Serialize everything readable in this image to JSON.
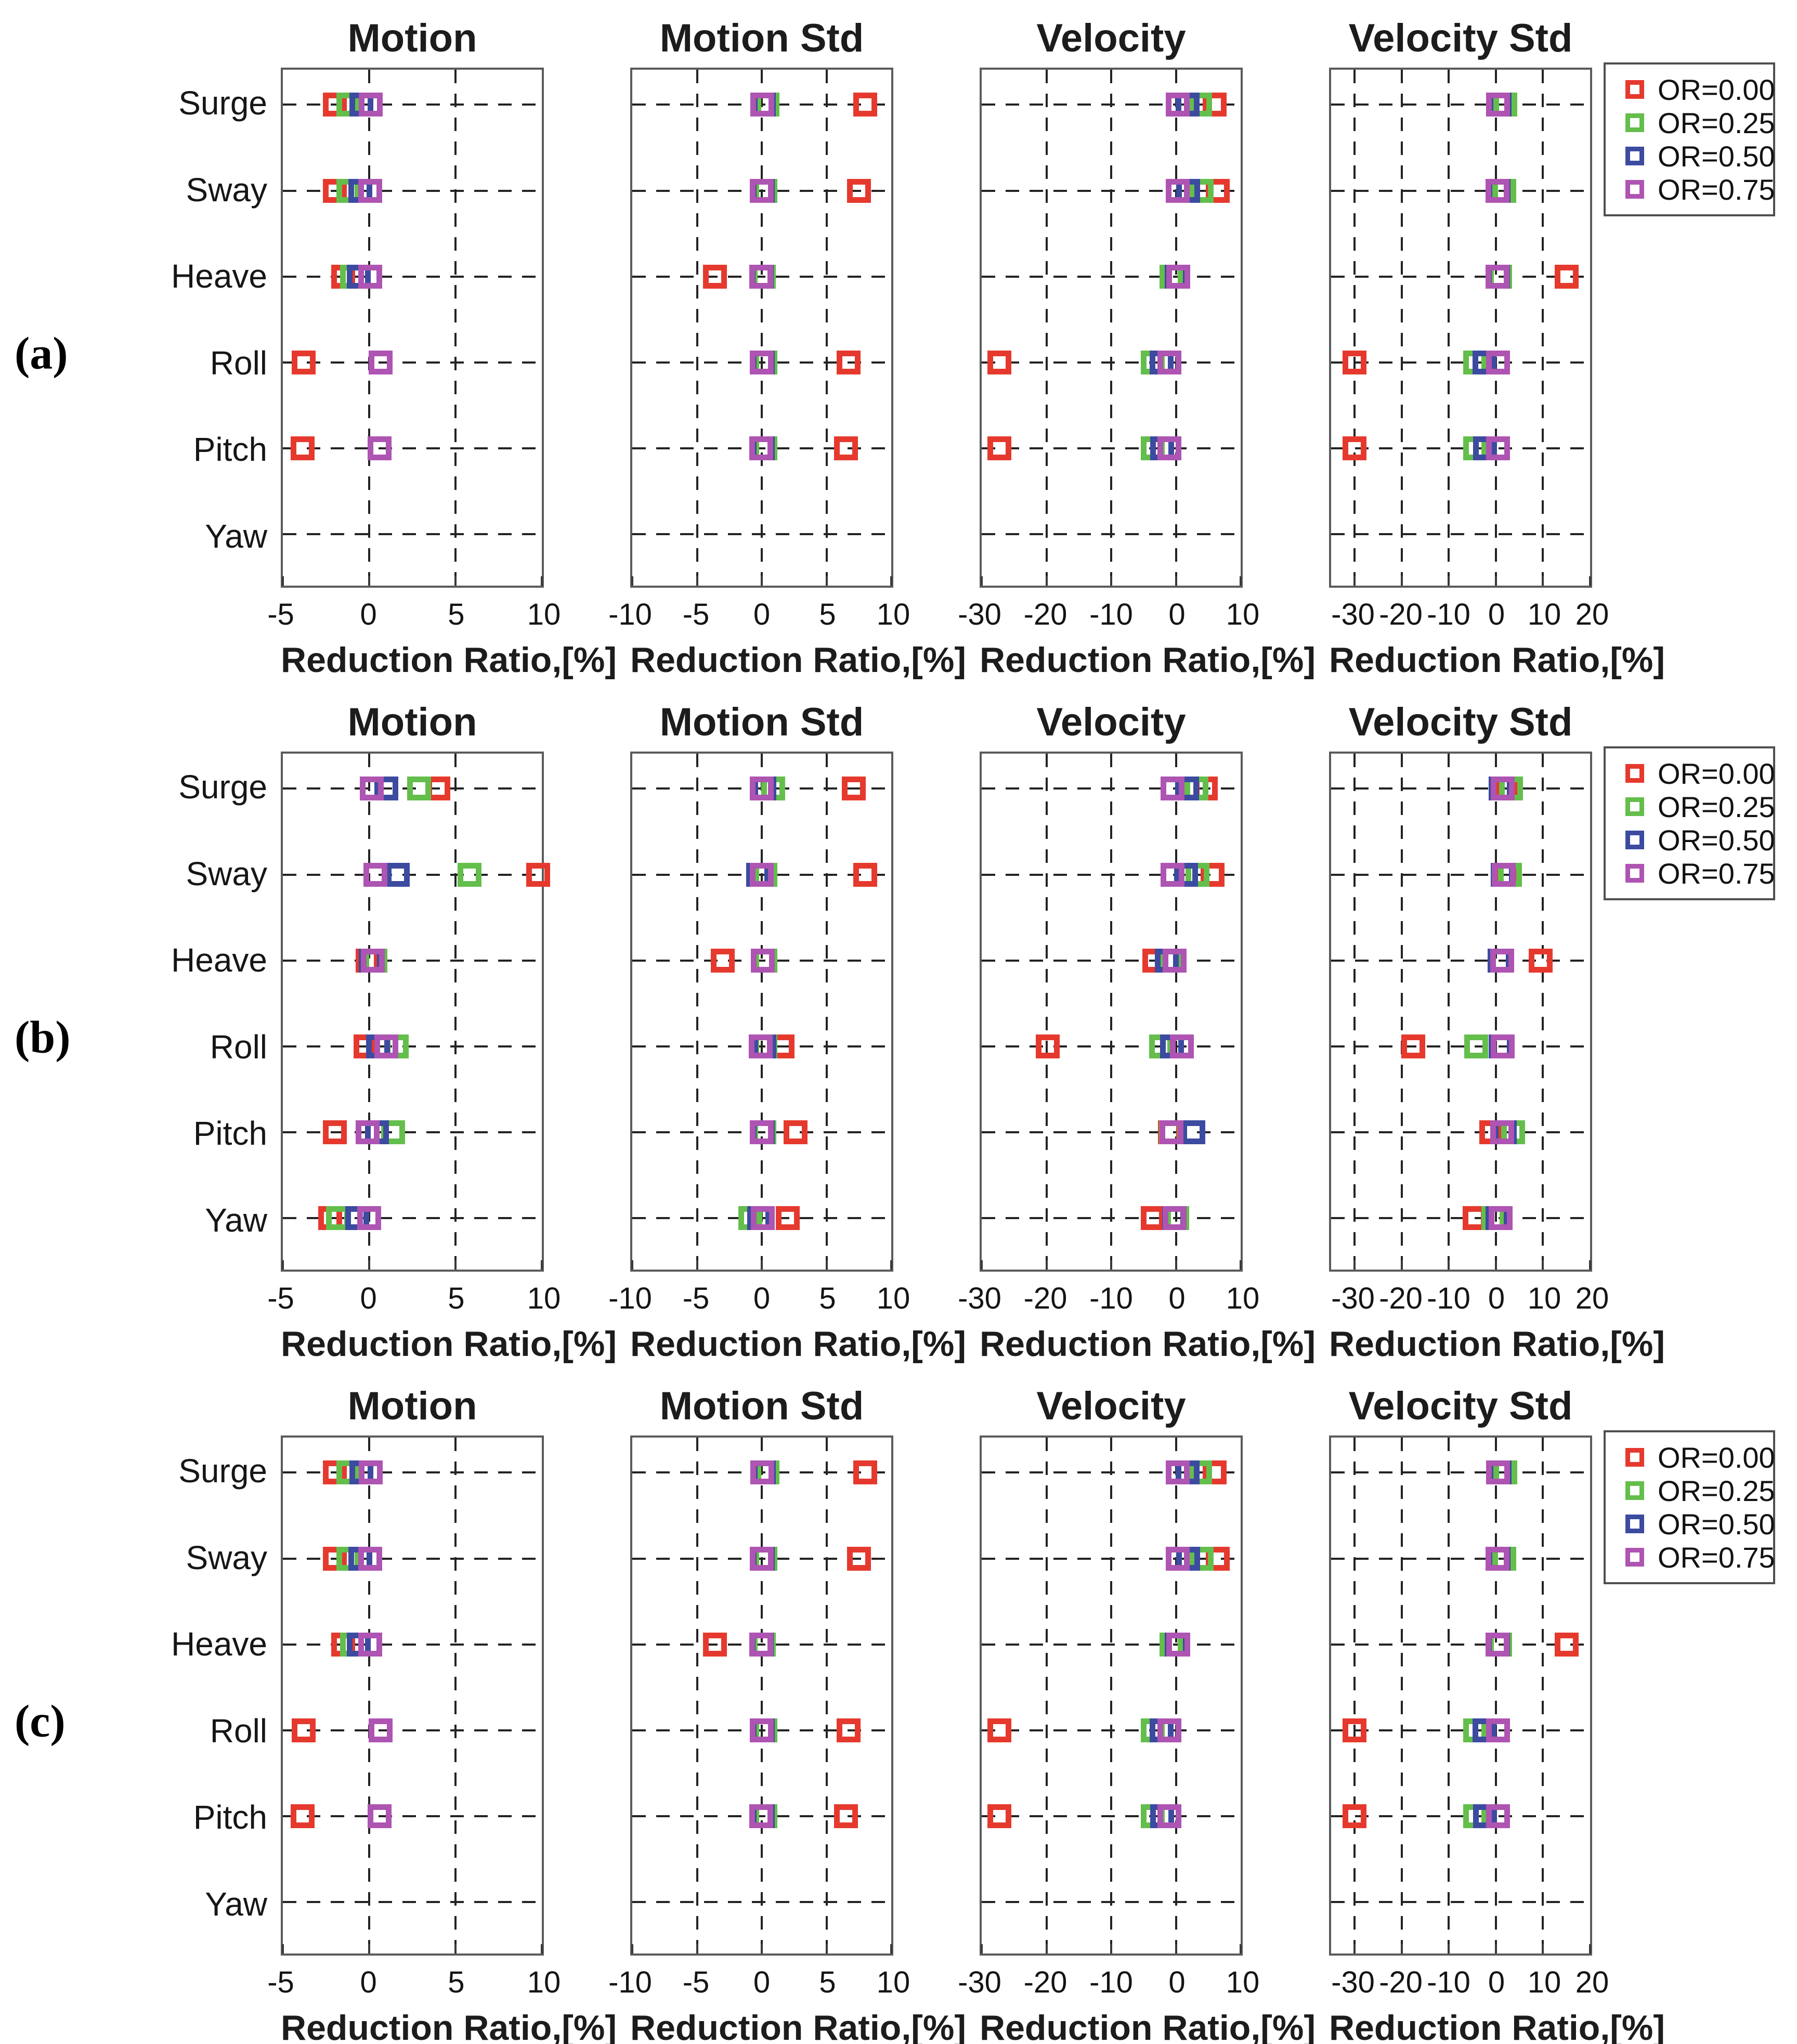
{
  "figure": {
    "background": "#ffffff",
    "x_axis_label": "Reduction Ratio,[%]",
    "categories": [
      "Surge",
      "Sway",
      "Heave",
      "Roll",
      "Pitch",
      "Yaw"
    ],
    "row_labels": [
      "(a)",
      "(b)",
      "(c)"
    ],
    "legend": {
      "items": [
        {
          "label": "OR=0.00",
          "color": "#E6392E"
        },
        {
          "label": "OR=0.25",
          "color": "#64BE4B"
        },
        {
          "label": "OR=0.50",
          "color": "#3C4BA0"
        },
        {
          "label": "OR=0.75",
          "color": "#AE54B2"
        }
      ]
    }
  },
  "chart_data": [
    {
      "row_label": "(a)",
      "type": "scatter",
      "panels": [
        {
          "title": "Motion",
          "xlabel": "Reduction Ratio,[%]",
          "xlim": [
            -5,
            10
          ],
          "xticks": [
            -5,
            0,
            5,
            10
          ],
          "grid_x": [
            0,
            5
          ],
          "series": [
            {
              "name": "OR=0.00",
              "color": "#E6392E",
              "values": [
                -2.0,
                -2.0,
                -1.5,
                -3.8,
                -3.85,
                null
              ]
            },
            {
              "name": "OR=0.25",
              "color": "#64BE4B",
              "values": [
                -1.2,
                -1.2,
                -1.0,
                0.65,
                0.6,
                null
              ]
            },
            {
              "name": "OR=0.50",
              "color": "#3C4BA0",
              "values": [
                -0.45,
                -0.5,
                -0.6,
                0.65,
                0.6,
                null
              ]
            },
            {
              "name": "OR=0.75",
              "color": "#AE54B2",
              "values": [
                0.1,
                0.05,
                0.05,
                0.65,
                0.6,
                null
              ]
            }
          ]
        },
        {
          "title": "Motion Std",
          "xlabel": "Reduction Ratio,[%]",
          "xlim": [
            -10,
            10
          ],
          "xticks": [
            -10,
            -5,
            0,
            5,
            10
          ],
          "grid_x": [
            -5,
            0,
            5
          ],
          "series": [
            {
              "name": "OR=0.00",
              "color": "#E6392E",
              "values": [
                8.0,
                7.5,
                -3.6,
                6.7,
                6.5,
                null
              ]
            },
            {
              "name": "OR=0.25",
              "color": "#64BE4B",
              "values": [
                0.45,
                0.3,
                0.15,
                0.3,
                0.3,
                null
              ]
            },
            {
              "name": "OR=0.50",
              "color": "#3C4BA0",
              "values": [
                0.15,
                0.1,
                0.0,
                0.1,
                0.1,
                null
              ]
            },
            {
              "name": "OR=0.75",
              "color": "#AE54B2",
              "values": [
                0.05,
                0.0,
                -0.05,
                0.0,
                -0.05,
                null
              ]
            }
          ]
        },
        {
          "title": "Velocity",
          "xlabel": "Reduction Ratio,[%]",
          "xlim": [
            -30,
            10
          ],
          "xticks": [
            -30,
            -20,
            -10,
            0,
            10
          ],
          "grid_x": [
            -20,
            -10,
            0
          ],
          "series": [
            {
              "name": "OR=0.00",
              "color": "#E6392E",
              "values": [
                6.0,
                6.5,
                0.0,
                -27.3,
                -27.3,
                null
              ]
            },
            {
              "name": "OR=0.25",
              "color": "#64BE4B",
              "values": [
                3.7,
                4.0,
                -0.7,
                -3.6,
                -3.6,
                null
              ]
            },
            {
              "name": "OR=0.50",
              "color": "#3C4BA0",
              "values": [
                1.8,
                1.9,
                0.1,
                -2.2,
                -2.1,
                null
              ]
            },
            {
              "name": "OR=0.75",
              "color": "#AE54B2",
              "values": [
                0.3,
                0.3,
                0.4,
                -1.0,
                -1.0,
                null
              ]
            }
          ]
        },
        {
          "title": "Velocity Std",
          "xlabel": "Reduction Ratio,[%]",
          "xlim": [
            -35,
            20
          ],
          "xticks": [
            -30,
            -20,
            -10,
            0,
            10,
            20
          ],
          "grid_x": [
            -30,
            -20,
            -10,
            0,
            10
          ],
          "series": [
            {
              "name": "OR=0.00",
              "color": "#E6392E",
              "values": [
                1.0,
                0.8,
                15.0,
                -30.0,
                -30.0,
                null
              ]
            },
            {
              "name": "OR=0.25",
              "color": "#64BE4B",
              "values": [
                2.0,
                1.8,
                0.9,
                -4.4,
                -4.4,
                null
              ]
            },
            {
              "name": "OR=0.50",
              "color": "#3C4BA0",
              "values": [
                0.8,
                0.6,
                0.4,
                -2.4,
                -2.3,
                null
              ]
            },
            {
              "name": "OR=0.75",
              "color": "#AE54B2",
              "values": [
                0.5,
                0.3,
                0.3,
                0.4,
                0.4,
                null
              ]
            }
          ]
        }
      ]
    },
    {
      "row_label": "(b)",
      "type": "scatter",
      "panels": [
        {
          "title": "Motion",
          "xlabel": "Reduction Ratio,[%]",
          "xlim": [
            -5,
            10
          ],
          "xticks": [
            -5,
            0,
            5,
            10
          ],
          "grid_x": [
            0,
            5
          ],
          "series": [
            {
              "name": "OR=0.00",
              "color": "#E6392E",
              "values": [
                4.0,
                9.8,
                -0.1,
                -0.2,
                -2.0,
                -2.25
              ]
            },
            {
              "name": "OR=0.25",
              "color": "#64BE4B",
              "values": [
                2.9,
                5.8,
                0.35,
                1.6,
                1.4,
                -1.8
              ]
            },
            {
              "name": "OR=0.50",
              "color": "#3C4BA0",
              "values": [
                1.0,
                1.65,
                0.1,
                0.5,
                0.45,
                -0.7
              ]
            },
            {
              "name": "OR=0.75",
              "color": "#AE54B2",
              "values": [
                0.15,
                0.35,
                0.2,
                1.0,
                -0.1,
                0.0
              ]
            }
          ]
        },
        {
          "title": "Motion Std",
          "xlabel": "Reduction Ratio,[%]",
          "xlim": [
            -10,
            10
          ],
          "xticks": [
            -10,
            -5,
            0,
            5,
            10
          ],
          "grid_x": [
            -5,
            0,
            5
          ],
          "series": [
            {
              "name": "OR=0.00",
              "color": "#E6392E",
              "values": [
                7.1,
                8.0,
                -3.0,
                1.6,
                2.6,
                2.0
              ]
            },
            {
              "name": "OR=0.25",
              "color": "#64BE4B",
              "values": [
                0.9,
                0.3,
                0.3,
                0.3,
                0.2,
                -0.9
              ]
            },
            {
              "name": "OR=0.50",
              "color": "#3C4BA0",
              "values": [
                0.2,
                -0.3,
                0.1,
                0.2,
                0.1,
                -0.2
              ]
            },
            {
              "name": "OR=0.75",
              "color": "#AE54B2",
              "values": [
                0.0,
                0.0,
                0.1,
                -0.1,
                0.0,
                0.1
              ]
            }
          ]
        },
        {
          "title": "Velocity",
          "xlabel": "Reduction Ratio,[%]",
          "xlim": [
            -30,
            10
          ],
          "xticks": [
            -30,
            -20,
            -10,
            0,
            10
          ],
          "grid_x": [
            -20,
            -10,
            0
          ],
          "series": [
            {
              "name": "OR=0.00",
              "color": "#E6392E",
              "values": [
                4.6,
                5.7,
                -3.3,
                -19.8,
                -0.9,
                -3.6
              ]
            },
            {
              "name": "OR=0.25",
              "color": "#64BE4B",
              "values": [
                3.2,
                3.3,
                -0.6,
                -2.3,
                -0.8,
                0.2
              ]
            },
            {
              "name": "OR=0.50",
              "color": "#3C4BA0",
              "values": [
                1.7,
                1.6,
                -1.4,
                -0.6,
                2.7,
                -0.3
              ]
            },
            {
              "name": "OR=0.75",
              "color": "#AE54B2",
              "values": [
                -0.5,
                -0.5,
                -0.2,
                0.9,
                -0.7,
                -0.2
              ]
            }
          ]
        },
        {
          "title": "Velocity Std",
          "xlabel": "Reduction Ratio,[%]",
          "xlim": [
            -35,
            20
          ],
          "xticks": [
            -30,
            -20,
            -10,
            0,
            10,
            20
          ],
          "grid_x": [
            -30,
            -20,
            -10,
            0,
            10
          ],
          "series": [
            {
              "name": "OR=0.00",
              "color": "#E6392E",
              "values": [
                2.0,
                2.0,
                9.5,
                -17.5,
                -1.0,
                -4.5
              ]
            },
            {
              "name": "OR=0.25",
              "color": "#64BE4B",
              "values": [
                3.2,
                3.0,
                1.0,
                -4.2,
                3.6,
                -0.5
              ]
            },
            {
              "name": "OR=0.50",
              "color": "#3C4BA0",
              "values": [
                1.0,
                1.5,
                0.8,
                1.0,
                1.9,
                0.3
              ]
            },
            {
              "name": "OR=0.75",
              "color": "#AE54B2",
              "values": [
                1.5,
                1.7,
                1.3,
                1.5,
                1.3,
                1.0
              ]
            }
          ]
        }
      ]
    },
    {
      "row_label": "(c)",
      "type": "scatter",
      "panels": [
        {
          "title": "Motion",
          "xlabel": "Reduction Ratio,[%]",
          "xlim": [
            -5,
            10
          ],
          "xticks": [
            -5,
            0,
            5,
            10
          ],
          "grid_x": [
            0,
            5
          ],
          "series": [
            {
              "name": "OR=0.00",
              "color": "#E6392E",
              "values": [
                -2.0,
                -2.0,
                -1.5,
                -3.8,
                -3.85,
                null
              ]
            },
            {
              "name": "OR=0.25",
              "color": "#64BE4B",
              "values": [
                -1.2,
                -1.2,
                -1.0,
                0.65,
                0.6,
                null
              ]
            },
            {
              "name": "OR=0.50",
              "color": "#3C4BA0",
              "values": [
                -0.45,
                -0.5,
                -0.6,
                0.65,
                0.6,
                null
              ]
            },
            {
              "name": "OR=0.75",
              "color": "#AE54B2",
              "values": [
                0.1,
                0.05,
                0.05,
                0.65,
                0.6,
                null
              ]
            }
          ]
        },
        {
          "title": "Motion Std",
          "xlabel": "Reduction Ratio,[%]",
          "xlim": [
            -10,
            10
          ],
          "xticks": [
            -10,
            -5,
            0,
            5,
            10
          ],
          "grid_x": [
            -5,
            0,
            5
          ],
          "series": [
            {
              "name": "OR=0.00",
              "color": "#E6392E",
              "values": [
                8.0,
                7.5,
                -3.6,
                6.7,
                6.5,
                null
              ]
            },
            {
              "name": "OR=0.25",
              "color": "#64BE4B",
              "values": [
                0.45,
                0.3,
                0.15,
                0.3,
                0.3,
                null
              ]
            },
            {
              "name": "OR=0.50",
              "color": "#3C4BA0",
              "values": [
                0.15,
                0.1,
                0.0,
                0.1,
                0.1,
                null
              ]
            },
            {
              "name": "OR=0.75",
              "color": "#AE54B2",
              "values": [
                0.05,
                0.0,
                -0.05,
                0.0,
                -0.05,
                null
              ]
            }
          ]
        },
        {
          "title": "Velocity",
          "xlabel": "Reduction Ratio,[%]",
          "xlim": [
            -30,
            10
          ],
          "xticks": [
            -30,
            -20,
            -10,
            0,
            10
          ],
          "grid_x": [
            -20,
            -10,
            0
          ],
          "series": [
            {
              "name": "OR=0.00",
              "color": "#E6392E",
              "values": [
                6.0,
                6.5,
                0.0,
                -27.3,
                -27.3,
                null
              ]
            },
            {
              "name": "OR=0.25",
              "color": "#64BE4B",
              "values": [
                3.7,
                4.0,
                -0.7,
                -3.6,
                -3.6,
                null
              ]
            },
            {
              "name": "OR=0.50",
              "color": "#3C4BA0",
              "values": [
                1.8,
                1.9,
                0.1,
                -2.2,
                -2.1,
                null
              ]
            },
            {
              "name": "OR=0.75",
              "color": "#AE54B2",
              "values": [
                0.3,
                0.3,
                0.4,
                -1.0,
                -1.0,
                null
              ]
            }
          ]
        },
        {
          "title": "Velocity Std",
          "xlabel": "Reduction Ratio,[%]",
          "xlim": [
            -35,
            20
          ],
          "xticks": [
            -30,
            -20,
            -10,
            0,
            10,
            20
          ],
          "grid_x": [
            -30,
            -20,
            -10,
            0,
            10
          ],
          "series": [
            {
              "name": "OR=0.00",
              "color": "#E6392E",
              "values": [
                1.0,
                0.8,
                15.0,
                -30.0,
                -30.0,
                null
              ]
            },
            {
              "name": "OR=0.25",
              "color": "#64BE4B",
              "values": [
                2.0,
                1.8,
                0.9,
                -4.4,
                -4.4,
                null
              ]
            },
            {
              "name": "OR=0.50",
              "color": "#3C4BA0",
              "values": [
                0.8,
                0.6,
                0.4,
                -2.4,
                -2.3,
                null
              ]
            },
            {
              "name": "OR=0.75",
              "color": "#AE54B2",
              "values": [
                0.5,
                0.3,
                0.3,
                0.4,
                0.4,
                null
              ]
            }
          ]
        }
      ]
    }
  ]
}
